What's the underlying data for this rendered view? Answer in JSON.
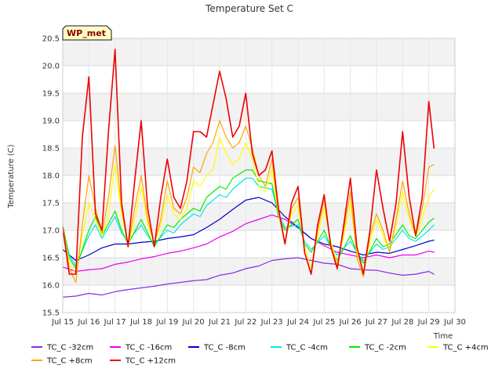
{
  "chart_data": {
    "type": "line",
    "title": "Temperature Set C",
    "xlabel": "Time",
    "ylabel": "Temperature (C)",
    "badge": "WP_met",
    "xlim": [
      15,
      30
    ],
    "ylim": [
      15.5,
      20.5
    ],
    "x_ticks": [
      15,
      16,
      17,
      18,
      19,
      20,
      21,
      22,
      23,
      24,
      25,
      26,
      27,
      28,
      29,
      30
    ],
    "x_tick_labels": [
      "Jul 15",
      "Jul 16",
      "Jul 17",
      "Jul 18",
      "Jul 19",
      "Jul 20",
      "Jul 21",
      "Jul 22",
      "Jul 23",
      "Jul 24",
      "Jul 25",
      "Jul 26",
      "Jul 27",
      "Jul 28",
      "Jul 29",
      "Jul 30"
    ],
    "y_ticks": [
      15.5,
      16.0,
      16.5,
      17.0,
      17.5,
      18.0,
      18.5,
      19.0,
      19.5,
      20.0,
      20.5
    ],
    "y_tick_labels": [
      "15.5",
      "16.0",
      "16.5",
      "17.0",
      "17.5",
      "18.0",
      "18.5",
      "19.0",
      "19.5",
      "20.0",
      "20.5"
    ],
    "grid": true,
    "legend_position": "bottom",
    "series": [
      {
        "name": "TC_C -32cm",
        "color": "#8a2be2",
        "x": [
          15.0,
          15.5,
          16.0,
          16.5,
          17.0,
          17.5,
          18.0,
          18.5,
          19.0,
          19.5,
          20.0,
          20.5,
          21.0,
          21.5,
          22.0,
          22.5,
          23.0,
          23.5,
          24.0,
          24.5,
          25.0,
          25.5,
          26.0,
          26.5,
          27.0,
          27.5,
          28.0,
          28.5,
          29.0,
          29.2
        ],
        "y": [
          15.78,
          15.8,
          15.85,
          15.82,
          15.88,
          15.92,
          15.95,
          15.98,
          16.02,
          16.05,
          16.08,
          16.1,
          16.18,
          16.22,
          16.3,
          16.35,
          16.45,
          16.48,
          16.5,
          16.45,
          16.4,
          16.38,
          16.3,
          16.28,
          16.27,
          16.22,
          16.18,
          16.2,
          16.25,
          16.2
        ]
      },
      {
        "name": "TC_C -16cm",
        "color": "#ee00ee",
        "x": [
          15.0,
          15.5,
          16.0,
          16.5,
          17.0,
          17.5,
          18.0,
          18.5,
          19.0,
          19.5,
          20.0,
          20.5,
          21.0,
          21.5,
          22.0,
          22.5,
          23.0,
          23.5,
          24.0,
          24.5,
          25.0,
          25.5,
          26.0,
          26.5,
          27.0,
          27.5,
          28.0,
          28.5,
          29.0,
          29.2
        ],
        "y": [
          16.33,
          16.25,
          16.28,
          16.3,
          16.38,
          16.42,
          16.48,
          16.52,
          16.58,
          16.62,
          16.68,
          16.75,
          16.88,
          16.98,
          17.12,
          17.2,
          17.28,
          17.2,
          17.05,
          16.85,
          16.72,
          16.6,
          16.55,
          16.5,
          16.55,
          16.5,
          16.55,
          16.55,
          16.62,
          16.6
        ]
      },
      {
        "name": "TC_C -8cm",
        "color": "#0000cd",
        "x": [
          15.0,
          15.5,
          16.0,
          16.5,
          17.0,
          17.5,
          18.0,
          18.5,
          19.0,
          19.5,
          20.0,
          20.5,
          21.0,
          21.5,
          22.0,
          22.5,
          23.0,
          23.5,
          24.0,
          24.5,
          25.0,
          25.5,
          26.0,
          26.5,
          27.0,
          27.5,
          28.0,
          28.5,
          29.0,
          29.2
        ],
        "y": [
          16.65,
          16.45,
          16.55,
          16.68,
          16.75,
          16.75,
          16.78,
          16.8,
          16.85,
          16.88,
          16.92,
          17.05,
          17.2,
          17.38,
          17.55,
          17.6,
          17.5,
          17.25,
          17.05,
          16.85,
          16.75,
          16.7,
          16.62,
          16.55,
          16.6,
          16.58,
          16.65,
          16.72,
          16.8,
          16.82
        ]
      },
      {
        "name": "TC_C -4cm",
        "color": "#00e5ee",
        "x": [
          15.0,
          15.25,
          15.5,
          16.0,
          16.25,
          16.5,
          17.0,
          17.25,
          17.5,
          18.0,
          18.25,
          18.5,
          19.0,
          19.25,
          19.5,
          20.0,
          20.25,
          20.5,
          21.0,
          21.25,
          21.5,
          22.0,
          22.25,
          22.5,
          23.0,
          23.25,
          23.5,
          24.0,
          24.25,
          24.5,
          25.0,
          25.25,
          25.5,
          26.0,
          26.25,
          26.5,
          27.0,
          27.25,
          27.5,
          28.0,
          28.25,
          28.5,
          29.0,
          29.2
        ],
        "y": [
          17.05,
          16.55,
          16.35,
          16.9,
          17.1,
          16.85,
          17.25,
          16.95,
          16.8,
          17.1,
          16.9,
          16.75,
          17.0,
          16.95,
          17.1,
          17.3,
          17.25,
          17.45,
          17.65,
          17.6,
          17.75,
          17.95,
          17.95,
          17.8,
          17.75,
          17.3,
          17.05,
          17.1,
          16.8,
          16.65,
          16.9,
          16.7,
          16.55,
          16.8,
          16.6,
          16.45,
          16.75,
          16.65,
          16.7,
          17.0,
          16.85,
          16.8,
          17.0,
          17.1
        ]
      },
      {
        "name": "TC_C -2cm",
        "color": "#00ee00",
        "x": [
          15.0,
          15.25,
          15.5,
          16.0,
          16.25,
          16.5,
          17.0,
          17.25,
          17.5,
          18.0,
          18.25,
          18.5,
          19.0,
          19.25,
          19.5,
          20.0,
          20.25,
          20.5,
          21.0,
          21.25,
          21.5,
          22.0,
          22.25,
          22.5,
          23.0,
          23.25,
          23.5,
          24.0,
          24.25,
          24.5,
          25.0,
          25.25,
          25.5,
          26.0,
          26.25,
          26.5,
          27.0,
          27.25,
          27.5,
          28.0,
          28.25,
          28.5,
          29.0,
          29.2
        ],
        "y": [
          17.1,
          16.5,
          16.3,
          17.0,
          17.25,
          16.9,
          17.35,
          17.0,
          16.75,
          17.2,
          16.95,
          16.7,
          17.1,
          17.05,
          17.2,
          17.4,
          17.35,
          17.6,
          17.8,
          17.75,
          17.95,
          18.1,
          18.1,
          17.9,
          17.85,
          17.25,
          17.0,
          17.2,
          16.75,
          16.6,
          17.0,
          16.7,
          16.45,
          16.9,
          16.6,
          16.4,
          16.85,
          16.7,
          16.75,
          17.1,
          16.9,
          16.85,
          17.15,
          17.22
        ]
      },
      {
        "name": "TC_C +4cm",
        "color": "#ffff00",
        "x": [
          15.0,
          15.25,
          15.5,
          15.75,
          16.0,
          16.25,
          16.5,
          16.75,
          17.0,
          17.25,
          17.5,
          17.75,
          18.0,
          18.25,
          18.5,
          18.75,
          19.0,
          19.25,
          19.5,
          19.75,
          20.0,
          20.25,
          20.5,
          20.75,
          21.0,
          21.25,
          21.5,
          21.75,
          22.0,
          22.25,
          22.5,
          22.75,
          23.0,
          23.25,
          23.5,
          23.75,
          24.0,
          24.25,
          24.5,
          24.75,
          25.0,
          25.25,
          25.5,
          25.75,
          26.0,
          26.25,
          26.5,
          26.75,
          27.0,
          27.25,
          27.5,
          27.75,
          28.0,
          28.25,
          28.5,
          28.75,
          29.0,
          29.2
        ],
        "y": [
          17.05,
          16.4,
          16.2,
          16.9,
          17.5,
          17.2,
          16.9,
          17.3,
          18.2,
          17.3,
          16.7,
          17.2,
          17.8,
          17.1,
          16.75,
          17.1,
          17.65,
          17.3,
          17.2,
          17.4,
          17.9,
          17.8,
          18.0,
          18.1,
          18.7,
          18.4,
          18.2,
          18.3,
          18.6,
          18.3,
          17.8,
          17.7,
          18.1,
          17.3,
          16.8,
          17.3,
          17.45,
          16.7,
          16.3,
          16.9,
          17.4,
          16.8,
          16.4,
          16.9,
          17.5,
          16.6,
          16.25,
          16.8,
          17.2,
          16.9,
          16.6,
          17.1,
          17.7,
          17.2,
          16.9,
          17.2,
          17.6,
          17.75
        ]
      },
      {
        "name": "TC_C +8cm",
        "color": "#ffa500",
        "x": [
          15.0,
          15.25,
          15.5,
          15.75,
          16.0,
          16.25,
          16.5,
          16.75,
          17.0,
          17.25,
          17.5,
          17.75,
          18.0,
          18.25,
          18.5,
          18.75,
          19.0,
          19.25,
          19.5,
          19.75,
          20.0,
          20.25,
          20.5,
          20.75,
          21.0,
          21.25,
          21.5,
          21.75,
          22.0,
          22.25,
          22.5,
          22.75,
          23.0,
          23.25,
          23.5,
          23.75,
          24.0,
          24.25,
          24.5,
          24.75,
          25.0,
          25.25,
          25.5,
          25.75,
          26.0,
          26.25,
          26.5,
          26.75,
          27.0,
          27.25,
          27.5,
          27.75,
          28.0,
          28.25,
          28.5,
          28.75,
          29.0,
          29.2
        ],
        "y": [
          17.1,
          16.3,
          16.05,
          17.1,
          18.0,
          17.4,
          16.95,
          17.6,
          18.55,
          17.4,
          16.7,
          17.4,
          18.0,
          17.2,
          16.75,
          17.2,
          17.9,
          17.4,
          17.3,
          17.6,
          18.15,
          18.05,
          18.4,
          18.6,
          19.0,
          18.7,
          18.5,
          18.6,
          18.9,
          18.5,
          18.0,
          17.8,
          18.3,
          17.3,
          16.75,
          17.4,
          17.6,
          16.6,
          16.2,
          17.0,
          17.55,
          16.75,
          16.35,
          17.0,
          17.7,
          16.5,
          16.15,
          16.9,
          17.3,
          17.0,
          16.6,
          17.2,
          17.9,
          17.3,
          16.9,
          17.4,
          18.15,
          18.2
        ]
      },
      {
        "name": "TC_C +12cm",
        "color": "#ee0000",
        "x": [
          15.0,
          15.25,
          15.5,
          15.75,
          16.0,
          16.25,
          16.5,
          16.75,
          17.0,
          17.25,
          17.5,
          17.75,
          18.0,
          18.25,
          18.5,
          18.75,
          19.0,
          19.25,
          19.5,
          19.75,
          20.0,
          20.25,
          20.5,
          20.75,
          21.0,
          21.25,
          21.5,
          21.75,
          22.0,
          22.25,
          22.5,
          22.75,
          23.0,
          23.25,
          23.5,
          23.75,
          24.0,
          24.25,
          24.5,
          24.75,
          25.0,
          25.25,
          25.5,
          25.75,
          26.0,
          26.25,
          26.5,
          26.75,
          27.0,
          27.25,
          27.5,
          27.75,
          28.0,
          28.25,
          28.5,
          28.75,
          29.0,
          29.2
        ],
        "y": [
          17.05,
          16.2,
          16.2,
          18.7,
          19.8,
          17.3,
          17.0,
          18.8,
          20.3,
          17.5,
          16.7,
          17.9,
          19.0,
          17.4,
          16.7,
          17.6,
          18.3,
          17.6,
          17.4,
          17.9,
          18.8,
          18.8,
          18.7,
          19.3,
          19.9,
          19.4,
          18.7,
          18.9,
          19.5,
          18.4,
          18.0,
          18.1,
          18.45,
          17.4,
          16.75,
          17.5,
          17.8,
          16.6,
          16.2,
          17.1,
          17.65,
          16.7,
          16.3,
          17.1,
          17.95,
          16.7,
          16.2,
          17.0,
          18.1,
          17.4,
          16.8,
          17.5,
          18.8,
          17.6,
          16.9,
          17.6,
          19.35,
          18.5
        ]
      }
    ]
  }
}
